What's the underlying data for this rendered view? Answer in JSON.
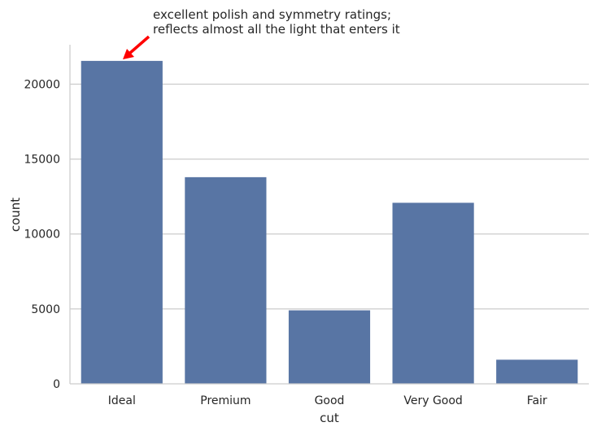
{
  "chart_data": {
    "type": "bar",
    "title": "",
    "xlabel": "cut",
    "ylabel": "count",
    "categories": [
      "Ideal",
      "Premium",
      "Good",
      "Very Good",
      "Fair"
    ],
    "values": [
      21551,
      13791,
      4906,
      12082,
      1610
    ],
    "ylim": [
      0,
      22630
    ],
    "yticks": [
      0,
      5000,
      10000,
      15000,
      20000
    ],
    "grid": "horizontal",
    "bar_color": "#5875a4",
    "grid_color": "#cccccc",
    "annotation": {
      "lines": [
        "excellent polish and symmetry ratings;",
        "reflects almost all the light that enters it"
      ],
      "target_category": "Ideal",
      "arrow_color": "#ff0000"
    }
  }
}
